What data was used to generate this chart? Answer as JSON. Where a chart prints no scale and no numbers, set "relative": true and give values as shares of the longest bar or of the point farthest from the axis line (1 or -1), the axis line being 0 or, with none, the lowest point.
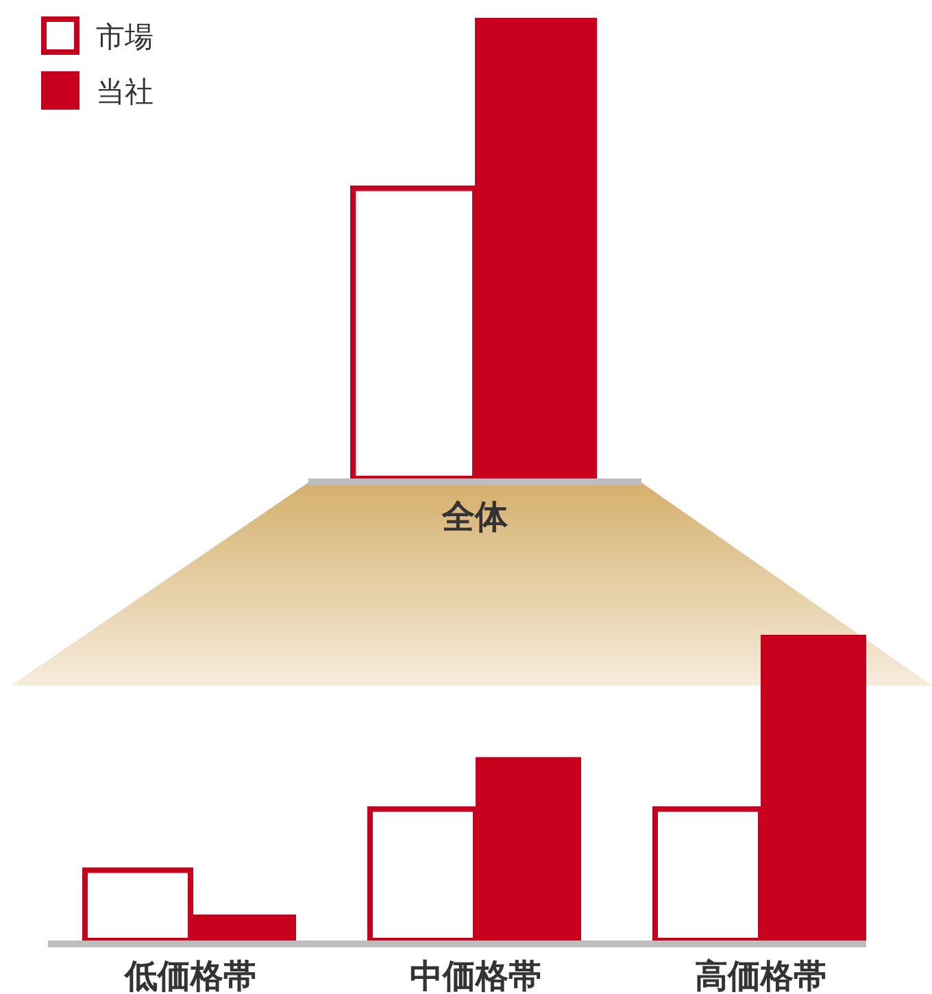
{
  "chart_data": [
    {
      "type": "bar",
      "relative": true,
      "categories": [
        "全体"
      ],
      "legend": "top left",
      "series": [
        {
          "name": "市場",
          "color": "#c8001e",
          "values": [
            0.63
          ]
        },
        {
          "name": "当社",
          "color": "#c8001e",
          "values": [
            1
          ]
        }
      ]
    },
    {
      "type": "bar",
      "relative": true,
      "categories": [
        "低価格帯",
        "中価格帯",
        "高価格帯"
      ],
      "series": [
        {
          "color": "#c8001e",
          "values": [
            0.23,
            0.43,
            0.43
          ]
        },
        {
          "color": "#c8001e",
          "values": [
            0.085,
            0.6,
            1
          ]
        }
      ]
    }
  ]
}
